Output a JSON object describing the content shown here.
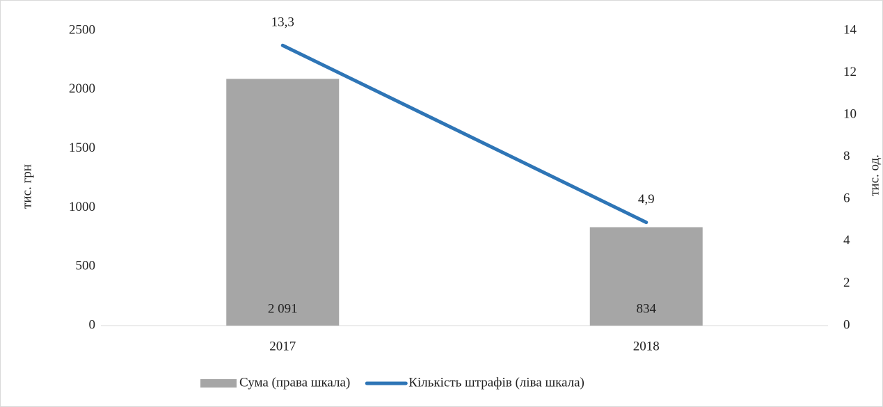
{
  "chart_data": {
    "type": "bar",
    "categories": [
      "2017",
      "2018"
    ],
    "series": [
      {
        "name": "Сума (права шкала)",
        "type": "bar",
        "color": "#a6a6a6",
        "values": [
          2091,
          834
        ],
        "value_labels": [
          "2 091",
          "834"
        ]
      },
      {
        "name": "Кількість штрафів (ліва шкала)",
        "type": "line",
        "axis": "y2",
        "color": "#2e75b6",
        "values": [
          13.3,
          4.9
        ],
        "value_labels": [
          "13,3",
          "4,9"
        ]
      }
    ],
    "ylabel": "тис. грн",
    "y2label": "тис. од.",
    "ylim": [
      0,
      2500
    ],
    "yticks": [
      0,
      500,
      1000,
      1500,
      2000,
      2500
    ],
    "y2lim": [
      0,
      14
    ],
    "y2ticks": [
      0,
      2,
      4,
      6,
      8,
      10,
      12,
      14
    ],
    "legend": "bottom"
  }
}
